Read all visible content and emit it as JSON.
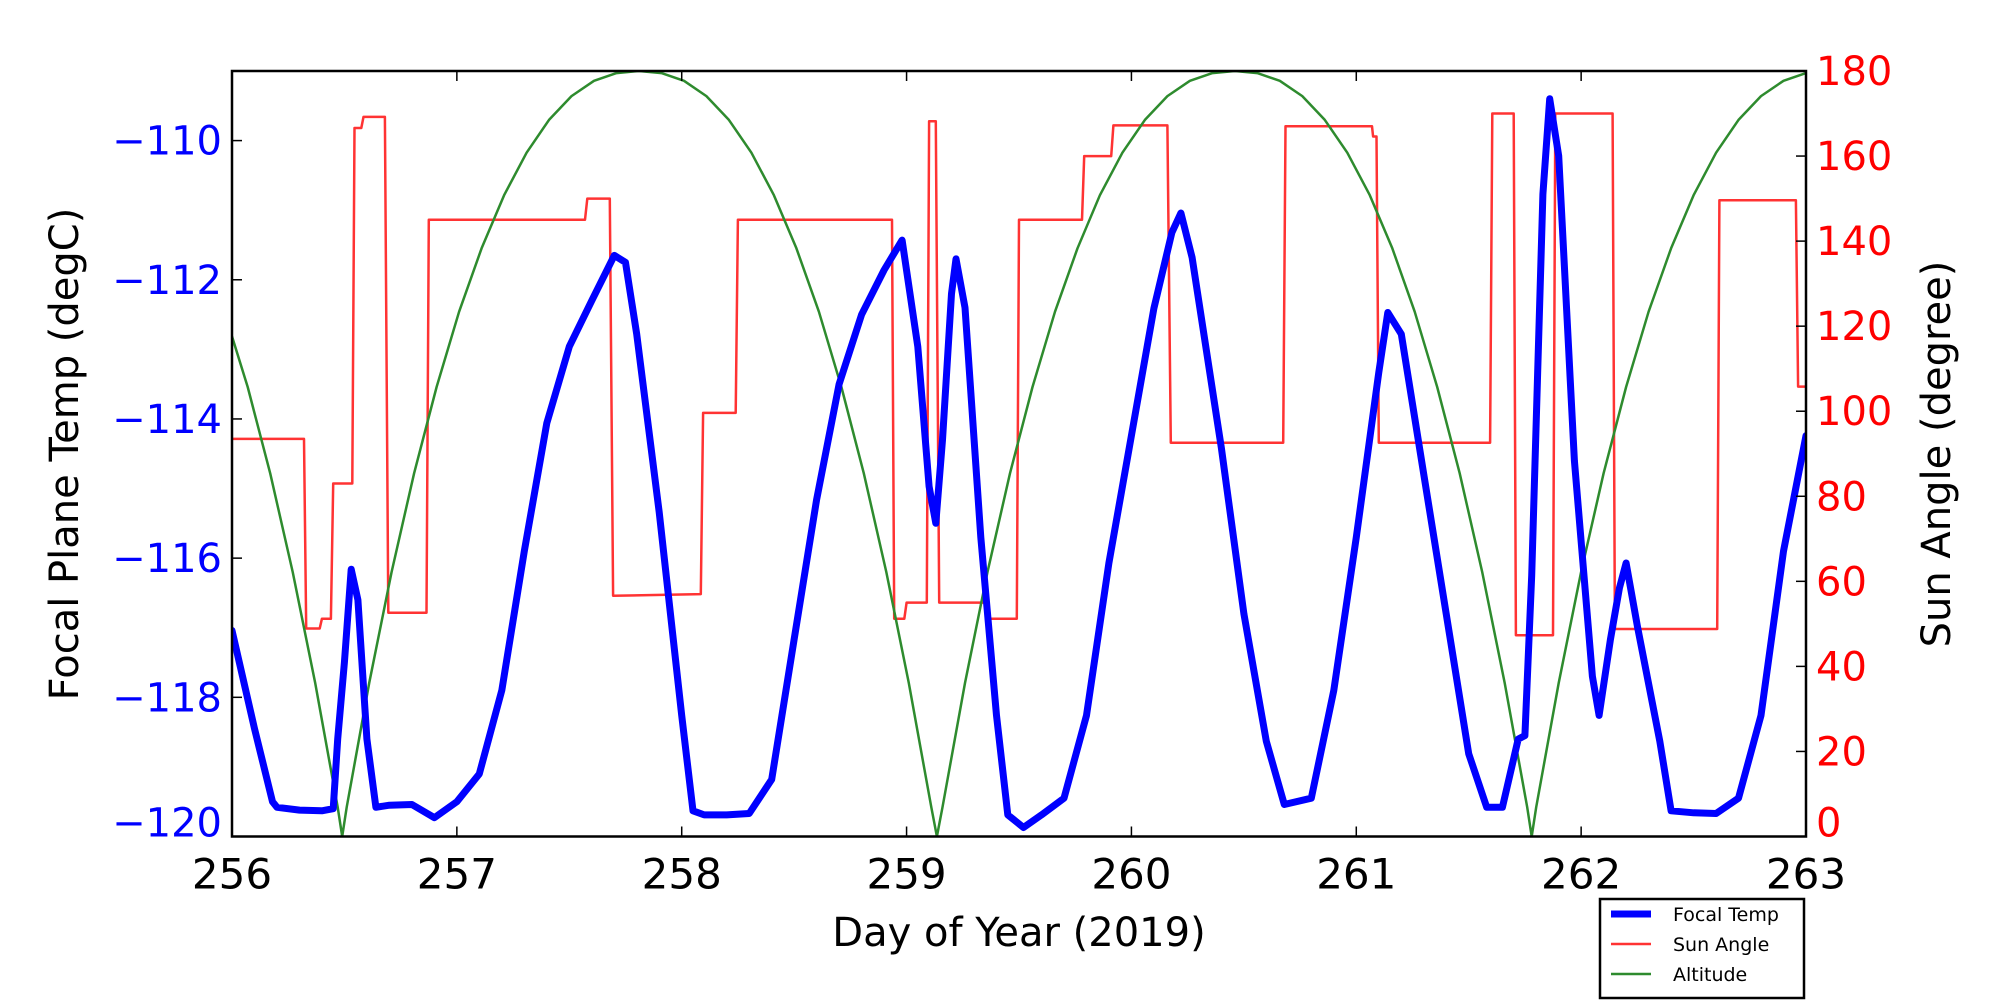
{
  "chart_data": {
    "type": "line",
    "xlabel": "Day of Year (2019)",
    "ylabel_left": "Focal Plane Temp (degC)",
    "ylabel_right": "Sun Angle (degree)",
    "xlim": [
      256,
      263
    ],
    "ylim_left": [
      -120,
      -109
    ],
    "ylim_right": [
      0,
      180
    ],
    "x_ticks": [
      "256",
      "257",
      "258",
      "259",
      "260",
      "261",
      "262",
      "263"
    ],
    "left_ticks": [
      "-120",
      "-118",
      "-116",
      "-114",
      "-112",
      "-110"
    ],
    "right_ticks": [
      "0",
      "20",
      "40",
      "60",
      "80",
      "100",
      "120",
      "140",
      "160",
      "180"
    ],
    "left_axis_color": "#0000ff",
    "right_axis_color": "#ff0000",
    "grid": false,
    "legend_placement": "below-right",
    "series": [
      {
        "name": "Focal Temp",
        "axis": "left",
        "color": "#0000ff",
        "points": [
          [
            256.0,
            -117.04
          ],
          [
            256.1,
            -118.45
          ],
          [
            256.18,
            -119.5
          ],
          [
            256.2,
            -119.58
          ],
          [
            256.3,
            -119.62
          ],
          [
            256.4,
            -119.63
          ],
          [
            256.45,
            -119.6
          ],
          [
            256.47,
            -118.6
          ],
          [
            256.5,
            -117.5
          ],
          [
            256.53,
            -116.16
          ],
          [
            256.56,
            -116.6
          ],
          [
            256.6,
            -118.6
          ],
          [
            256.64,
            -119.58
          ],
          [
            256.7,
            -119.55
          ],
          [
            256.8,
            -119.54
          ],
          [
            256.9,
            -119.73
          ],
          [
            257.0,
            -119.5
          ],
          [
            257.1,
            -119.1
          ],
          [
            257.2,
            -117.9
          ],
          [
            257.3,
            -115.9
          ],
          [
            257.4,
            -114.06
          ],
          [
            257.5,
            -112.96
          ],
          [
            257.6,
            -112.3
          ],
          [
            257.7,
            -111.65
          ],
          [
            257.75,
            -111.75
          ],
          [
            257.8,
            -112.78
          ],
          [
            257.9,
            -115.34
          ],
          [
            258.0,
            -118.26
          ],
          [
            258.05,
            -119.63
          ],
          [
            258.1,
            -119.69
          ],
          [
            258.2,
            -119.69
          ],
          [
            258.3,
            -119.67
          ],
          [
            258.4,
            -119.18
          ],
          [
            258.5,
            -117.17
          ],
          [
            258.6,
            -115.16
          ],
          [
            258.7,
            -113.5
          ],
          [
            258.8,
            -112.5
          ],
          [
            258.9,
            -111.86
          ],
          [
            258.98,
            -111.43
          ],
          [
            259.05,
            -112.96
          ],
          [
            259.1,
            -114.97
          ],
          [
            259.13,
            -115.5
          ],
          [
            259.16,
            -114.3
          ],
          [
            259.2,
            -112.2
          ],
          [
            259.22,
            -111.7
          ],
          [
            259.26,
            -112.4
          ],
          [
            259.33,
            -115.7
          ],
          [
            259.4,
            -118.26
          ],
          [
            259.45,
            -119.69
          ],
          [
            259.52,
            -119.87
          ],
          [
            259.6,
            -119.69
          ],
          [
            259.7,
            -119.45
          ],
          [
            259.8,
            -118.26
          ],
          [
            259.9,
            -116.07
          ],
          [
            260.0,
            -114.24
          ],
          [
            260.1,
            -112.41
          ],
          [
            260.18,
            -111.32
          ],
          [
            260.22,
            -111.04
          ],
          [
            260.27,
            -111.68
          ],
          [
            260.4,
            -114.42
          ],
          [
            260.5,
            -116.8
          ],
          [
            260.6,
            -118.63
          ],
          [
            260.68,
            -119.54
          ],
          [
            260.8,
            -119.45
          ],
          [
            260.9,
            -117.9
          ],
          [
            261.0,
            -115.7
          ],
          [
            261.1,
            -113.33
          ],
          [
            261.14,
            -112.47
          ],
          [
            261.2,
            -112.78
          ],
          [
            261.3,
            -114.79
          ],
          [
            261.4,
            -116.8
          ],
          [
            261.5,
            -118.81
          ],
          [
            261.58,
            -119.58
          ],
          [
            261.65,
            -119.58
          ],
          [
            261.72,
            -118.6
          ],
          [
            261.75,
            -118.55
          ],
          [
            261.78,
            -116.25
          ],
          [
            261.83,
            -110.77
          ],
          [
            261.86,
            -109.4
          ],
          [
            261.9,
            -110.22
          ],
          [
            261.97,
            -114.6
          ],
          [
            262.05,
            -117.7
          ],
          [
            262.08,
            -118.26
          ],
          [
            262.13,
            -117.17
          ],
          [
            262.17,
            -116.43
          ],
          [
            262.2,
            -116.07
          ],
          [
            262.25,
            -116.98
          ],
          [
            262.35,
            -118.63
          ],
          [
            262.4,
            -119.63
          ],
          [
            262.5,
            -119.66
          ],
          [
            262.6,
            -119.67
          ],
          [
            262.7,
            -119.45
          ],
          [
            262.8,
            -118.26
          ],
          [
            262.9,
            -115.9
          ],
          [
            263.0,
            -114.24
          ]
        ]
      },
      {
        "name": "Sun Angle",
        "axis": "right",
        "color": "#ff3333",
        "points": [
          [
            256.0,
            93.5
          ],
          [
            256.32,
            93.5
          ],
          [
            256.33,
            48.9
          ],
          [
            256.39,
            48.9
          ],
          [
            256.4,
            51.2
          ],
          [
            256.44,
            51.2
          ],
          [
            256.45,
            83
          ],
          [
            256.535,
            83
          ],
          [
            256.545,
            166.6
          ],
          [
            256.575,
            166.6
          ],
          [
            256.585,
            169.2
          ],
          [
            256.68,
            169.2
          ],
          [
            256.695,
            52.6
          ],
          [
            256.865,
            52.6
          ],
          [
            256.875,
            145
          ],
          [
            257.57,
            145
          ],
          [
            257.58,
            150
          ],
          [
            257.68,
            150
          ],
          [
            257.695,
            56.6
          ],
          [
            258.085,
            57
          ],
          [
            258.095,
            99.6
          ],
          [
            258.24,
            99.6
          ],
          [
            258.25,
            145
          ],
          [
            258.935,
            145
          ],
          [
            258.945,
            51.2
          ],
          [
            258.99,
            51.2
          ],
          [
            259.0,
            55
          ],
          [
            259.09,
            55
          ],
          [
            259.1,
            168.2
          ],
          [
            259.13,
            168.2
          ],
          [
            259.145,
            55
          ],
          [
            259.36,
            55
          ],
          [
            259.37,
            51.2
          ],
          [
            259.49,
            51.2
          ],
          [
            259.5,
            145
          ],
          [
            259.78,
            145
          ],
          [
            259.79,
            160
          ],
          [
            259.91,
            160
          ],
          [
            259.92,
            167.2
          ],
          [
            260.16,
            167.2
          ],
          [
            260.175,
            92.6
          ],
          [
            260.675,
            92.6
          ],
          [
            260.685,
            167
          ],
          [
            261.07,
            167
          ],
          [
            261.075,
            164.6
          ],
          [
            261.09,
            164.6
          ],
          [
            261.1,
            92.6
          ],
          [
            261.595,
            92.6
          ],
          [
            261.605,
            170
          ],
          [
            261.7,
            170
          ],
          [
            261.71,
            47.3
          ],
          [
            261.875,
            47.3
          ],
          [
            261.885,
            170
          ],
          [
            262.14,
            170
          ],
          [
            262.15,
            48.8
          ],
          [
            262.605,
            48.8
          ],
          [
            262.615,
            149.6
          ],
          [
            262.955,
            149.6
          ],
          [
            262.965,
            105.8
          ],
          [
            263.0,
            105.8
          ]
        ]
      },
      {
        "name": "Altitude",
        "axis": "right",
        "color": "#2e8b2e",
        "points": [
          [
            256.0,
            117.6
          ],
          [
            256.07,
            105.7
          ],
          [
            256.17,
            85.4
          ],
          [
            256.27,
            62.2
          ],
          [
            256.37,
            36.1
          ],
          [
            256.47,
            6.9
          ],
          [
            256.49,
            0
          ],
          [
            256.51,
            6.9
          ],
          [
            256.61,
            36.1
          ],
          [
            256.71,
            62.2
          ],
          [
            256.81,
            85.4
          ],
          [
            256.91,
            105.7
          ],
          [
            257.01,
            123.4
          ],
          [
            257.11,
            138.3
          ],
          [
            257.21,
            150.8
          ],
          [
            257.31,
            160.8
          ],
          [
            257.41,
            168.5
          ],
          [
            257.51,
            174.1
          ],
          [
            257.61,
            177.7
          ],
          [
            257.71,
            179.5
          ],
          [
            257.81,
            180
          ],
          [
            257.91,
            179.5
          ],
          [
            258.01,
            177.7
          ],
          [
            258.11,
            174.1
          ],
          [
            258.21,
            168.5
          ],
          [
            258.31,
            160.8
          ],
          [
            258.41,
            150.8
          ],
          [
            258.51,
            138.3
          ],
          [
            258.61,
            123.4
          ],
          [
            258.71,
            105.7
          ],
          [
            258.81,
            85.4
          ],
          [
            258.91,
            62.2
          ],
          [
            259.01,
            36.1
          ],
          [
            259.11,
            6.9
          ],
          [
            259.135,
            0
          ],
          [
            259.16,
            6.9
          ],
          [
            259.26,
            36.1
          ],
          [
            259.36,
            62.2
          ],
          [
            259.46,
            85.4
          ],
          [
            259.56,
            105.7
          ],
          [
            259.66,
            123.4
          ],
          [
            259.76,
            138.3
          ],
          [
            259.86,
            150.8
          ],
          [
            259.96,
            160.8
          ],
          [
            260.06,
            168.5
          ],
          [
            260.16,
            174.1
          ],
          [
            260.26,
            177.7
          ],
          [
            260.36,
            179.5
          ],
          [
            260.46,
            180
          ],
          [
            260.56,
            179.5
          ],
          [
            260.66,
            177.7
          ],
          [
            260.76,
            174.1
          ],
          [
            260.86,
            168.5
          ],
          [
            260.96,
            160.8
          ],
          [
            261.06,
            150.8
          ],
          [
            261.16,
            138.3
          ],
          [
            261.26,
            123.4
          ],
          [
            261.36,
            105.7
          ],
          [
            261.46,
            85.4
          ],
          [
            261.56,
            62.2
          ],
          [
            261.66,
            36.1
          ],
          [
            261.76,
            6.9
          ],
          [
            261.78,
            0
          ],
          [
            261.8,
            6.9
          ],
          [
            261.9,
            36.1
          ],
          [
            262.0,
            62.2
          ],
          [
            262.1,
            85.4
          ],
          [
            262.2,
            105.7
          ],
          [
            262.3,
            123.4
          ],
          [
            262.4,
            138.3
          ],
          [
            262.5,
            150.8
          ],
          [
            262.6,
            160.8
          ],
          [
            262.7,
            168.5
          ],
          [
            262.8,
            174.1
          ],
          [
            262.9,
            177.7
          ],
          [
            263.0,
            179.5
          ]
        ]
      }
    ],
    "legend": [
      "Focal Temp",
      "Sun Angle",
      "Altitude"
    ]
  }
}
